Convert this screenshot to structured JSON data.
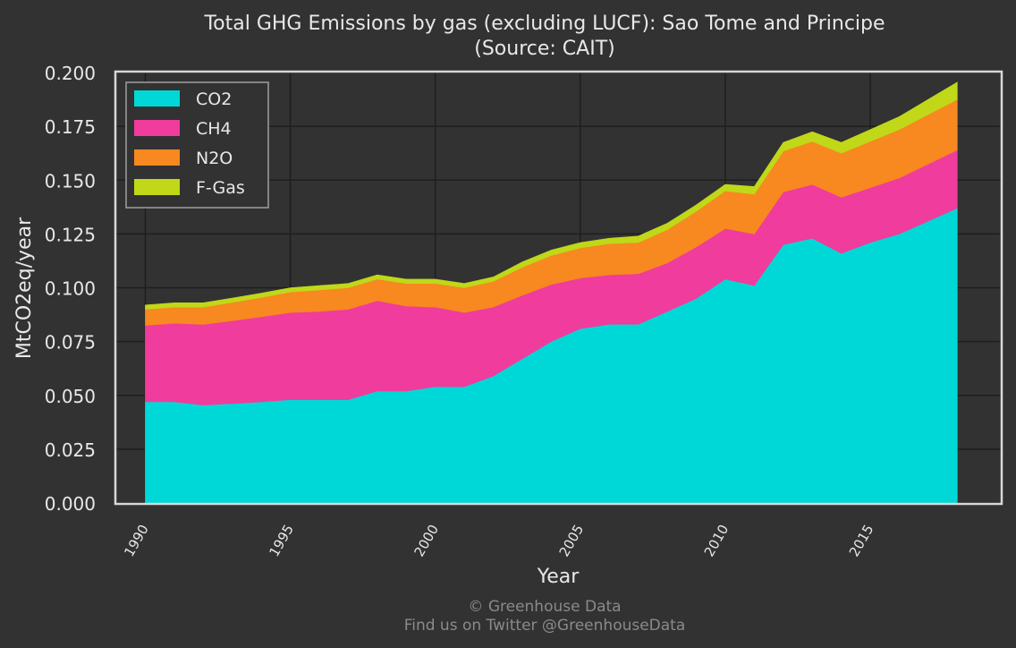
{
  "chart_data": {
    "type": "area",
    "stacked": true,
    "title_line1": "Total GHG Emissions by gas (excluding LUCF): Sao Tome and Principe",
    "title_line2": "(Source: CAIT)",
    "xlabel": "Year",
    "ylabel": "MtCO2eq/year",
    "xlim": [
      1989.0,
      2019.5
    ],
    "ylim": [
      0,
      0.2
    ],
    "x_ticks": [
      1990,
      1995,
      2000,
      2005,
      2010,
      2015
    ],
    "y_ticks": [
      "0.000",
      "0.025",
      "0.050",
      "0.075",
      "0.100",
      "0.125",
      "0.150",
      "0.175",
      "0.200"
    ],
    "grid": true,
    "legend_position": "top-left",
    "x": [
      1990,
      1991,
      1992,
      1993,
      1994,
      1995,
      1996,
      1997,
      1998,
      1999,
      2000,
      2001,
      2002,
      2003,
      2004,
      2005,
      2006,
      2007,
      2008,
      2009,
      2010,
      2011,
      2012,
      2013,
      2014,
      2015,
      2016,
      2017,
      2018
    ],
    "series": [
      {
        "name": "CO2",
        "color": "#00d8d8",
        "values": [
          0.047,
          0.047,
          0.0455,
          0.0462,
          0.047,
          0.048,
          0.048,
          0.048,
          0.052,
          0.052,
          0.054,
          0.054,
          0.059,
          0.067,
          0.075,
          0.081,
          0.083,
          0.083,
          0.089,
          0.095,
          0.104,
          0.101,
          0.12,
          0.123,
          0.116,
          0.121,
          0.125,
          0.131,
          0.137
        ]
      },
      {
        "name": "CH4",
        "color": "#f03c9c",
        "values": [
          0.0355,
          0.0365,
          0.0375,
          0.0385,
          0.0395,
          0.0405,
          0.041,
          0.042,
          0.042,
          0.0395,
          0.037,
          0.0345,
          0.032,
          0.0295,
          0.0265,
          0.0235,
          0.023,
          0.0235,
          0.0225,
          0.024,
          0.0235,
          0.024,
          0.0245,
          0.025,
          0.026,
          0.0255,
          0.026,
          0.0265,
          0.027
        ]
      },
      {
        "name": "N2O",
        "color": "#f88820",
        "values": [
          0.0075,
          0.0075,
          0.008,
          0.0085,
          0.009,
          0.0095,
          0.01,
          0.01,
          0.01,
          0.0105,
          0.011,
          0.0115,
          0.012,
          0.013,
          0.0135,
          0.014,
          0.0145,
          0.0145,
          0.0155,
          0.0165,
          0.0175,
          0.0185,
          0.019,
          0.02,
          0.0205,
          0.0215,
          0.0225,
          0.023,
          0.0235
        ]
      },
      {
        "name": "F-Gas",
        "color": "#c0d818",
        "values": [
          0.002,
          0.002,
          0.002,
          0.002,
          0.002,
          0.002,
          0.002,
          0.002,
          0.002,
          0.002,
          0.002,
          0.002,
          0.002,
          0.0025,
          0.0025,
          0.0025,
          0.0025,
          0.003,
          0.003,
          0.003,
          0.003,
          0.0035,
          0.004,
          0.0045,
          0.005,
          0.0055,
          0.006,
          0.007,
          0.008
        ]
      }
    ]
  },
  "footer": {
    "copyright": "© Greenhouse Data",
    "twitter": "Find us on Twitter @GreenhouseData"
  }
}
